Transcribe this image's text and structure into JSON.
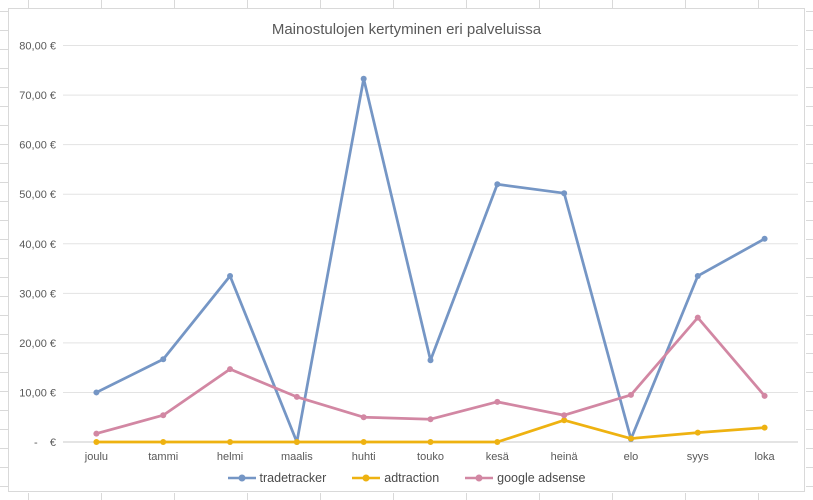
{
  "chart_data": {
    "type": "line",
    "title": "Mainostulojen kertyminen eri palveluissa",
    "categories": [
      "joulu",
      "tammi",
      "helmi",
      "maalis",
      "huhti",
      "touko",
      "kesä",
      "heinä",
      "elo",
      "syys",
      "loka"
    ],
    "series": [
      {
        "name": "tradetracker",
        "color": "#7596C5",
        "values": [
          10.0,
          16.7,
          33.5,
          0,
          73.3,
          16.5,
          52.0,
          50.2,
          0.6,
          33.5,
          41.0
        ]
      },
      {
        "name": "adtraction",
        "color": "#EEB211",
        "values": [
          0,
          0,
          0,
          0,
          0,
          0,
          0,
          4.4,
          0.7,
          1.9,
          2.9
        ]
      },
      {
        "name": "google adsense",
        "color": "#D287A3",
        "values": [
          1.7,
          5.4,
          14.7,
          9.1,
          5.0,
          4.6,
          8.1,
          5.4,
          9.5,
          25.1,
          9.3
        ]
      }
    ],
    "y_ticks": [
      {
        "value": 80,
        "label": "80,00 €"
      },
      {
        "value": 70,
        "label": "70,00 €"
      },
      {
        "value": 60,
        "label": "60,00 €"
      },
      {
        "value": 50,
        "label": "50,00 €"
      },
      {
        "value": 40,
        "label": "40,00 €"
      },
      {
        "value": 30,
        "label": "30,00 €"
      },
      {
        "value": 20,
        "label": "20,00 €"
      },
      {
        "value": 10,
        "label": "10,00 €"
      },
      {
        "value": 0,
        "label": "-    €"
      }
    ],
    "ylim": [
      0,
      80
    ],
    "grid": true,
    "legend_position": "bottom"
  },
  "colors": {
    "background": "#FFFFFF",
    "chart_border": "#D9D9D9",
    "sheet_gridline": "#D9D9D9",
    "gridline": "#E3E3E3",
    "axis_line": "#C9C9C9",
    "title_text": "#595959",
    "axis_text": "#595959",
    "legend_text": "#4A4A4A"
  }
}
